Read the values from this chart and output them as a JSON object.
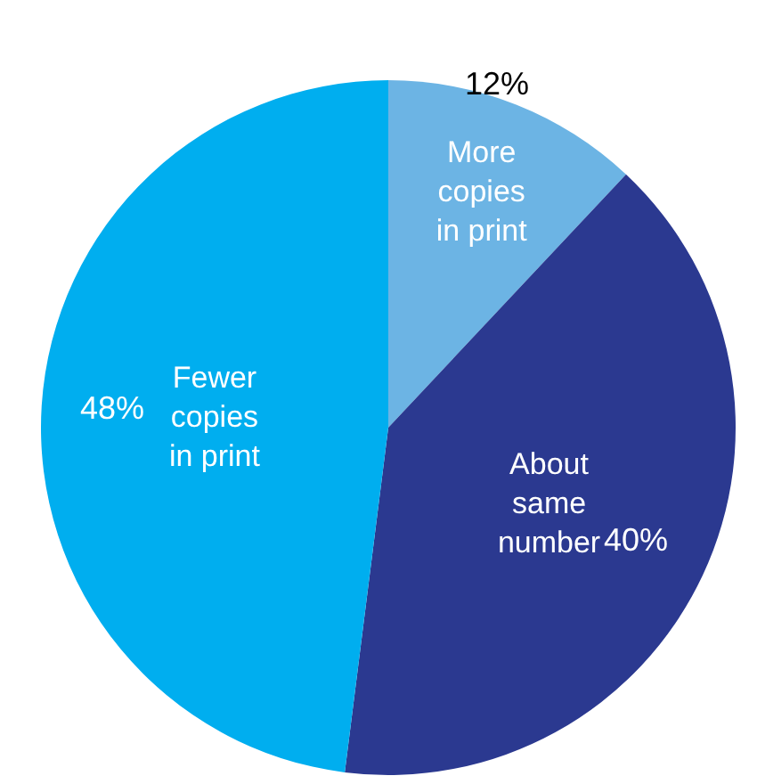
{
  "chart_data": {
    "type": "pie",
    "categories": [
      "More copies in print",
      "About same number",
      "Fewer copies in print"
    ],
    "values": [
      12,
      40,
      48
    ],
    "colors": [
      "#6cb4e4",
      "#2b3990",
      "#00aeef"
    ],
    "value_labels": [
      "12%",
      "40%",
      "48%"
    ],
    "legend": false
  }
}
